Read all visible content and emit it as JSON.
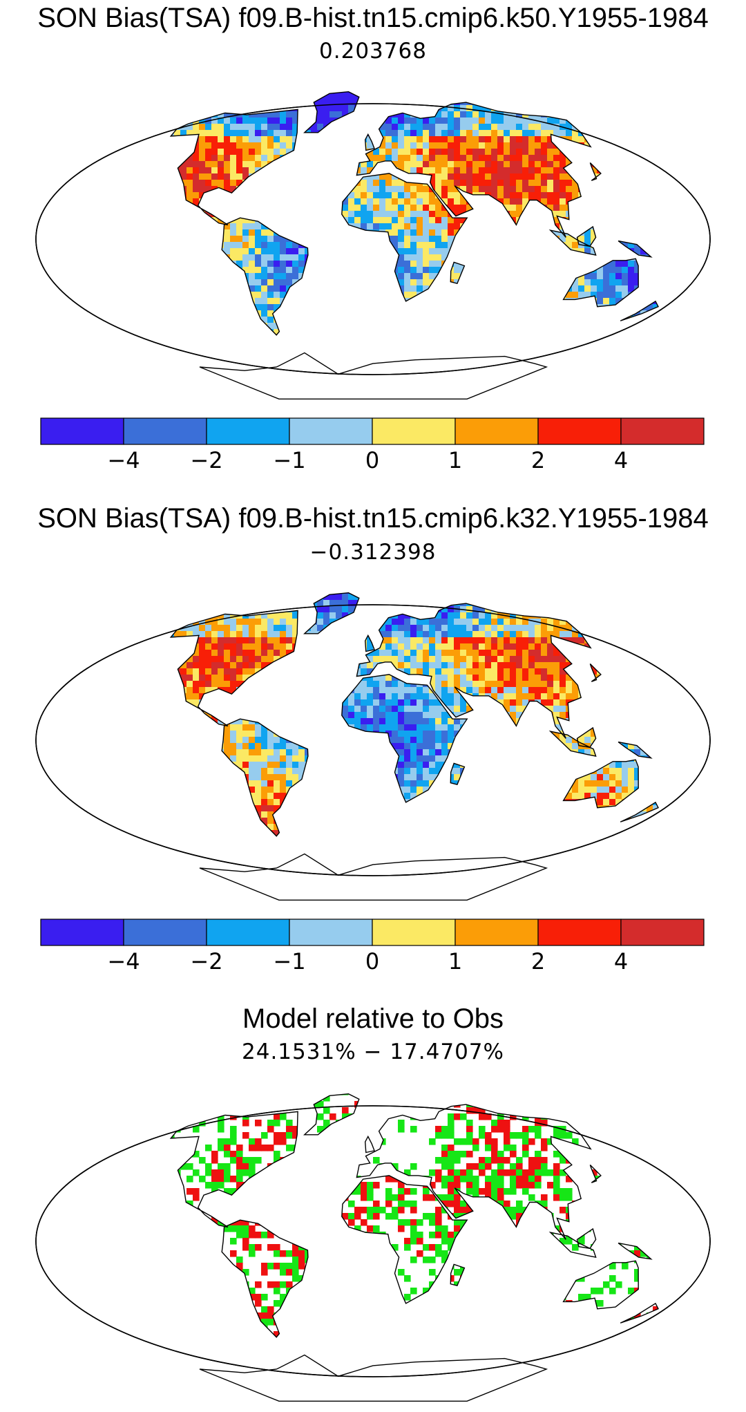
{
  "panels": [
    {
      "title": "SON Bias(TSA) f09.B-hist.tn15.cmip6.k50.Y1955-1984",
      "value": "0.203768",
      "type": "bias",
      "seed": 11
    },
    {
      "title": "SON Bias(TSA) f09.B-hist.tn15.cmip6.k32.Y1955-1984",
      "value": "−0.312398",
      "type": "bias",
      "seed": 29
    },
    {
      "title": "Model relative to Obs",
      "value": "24.1531% − 17.4707%",
      "type": "relative",
      "seed": 47
    }
  ],
  "colorbar": {
    "colors": [
      "#3a1ef0",
      "#3b6fd8",
      "#10a4f0",
      "#96ccee",
      "#fbe964",
      "#fb9d07",
      "#f81f07",
      "#d42c2c"
    ],
    "ticks": [
      "−4",
      "−2",
      "−1",
      "0",
      "1",
      "2",
      "4"
    ]
  },
  "relative_colors": {
    "better": "#16e616",
    "worse": "#ee1111"
  }
}
